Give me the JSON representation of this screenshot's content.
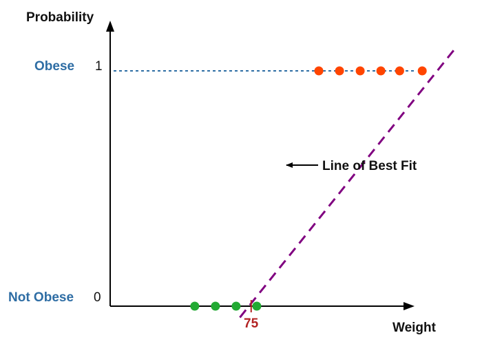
{
  "labels": {
    "y_axis": "Probability",
    "x_axis": "Weight",
    "obese": "Obese",
    "not_obese": "Not Obese",
    "one": "1",
    "zero": "0",
    "tick_75": "75",
    "annotation": "Line of Best Fit"
  },
  "colors": {
    "axis": "#000000",
    "category_label": "#2e6da4",
    "dashed_reference": "#2e6da4",
    "best_fit_line": "#800080",
    "obese_points": "#ff4500",
    "not_obese_points": "#22aa33",
    "tick_75": "#b22222"
  },
  "chart_data": {
    "type": "scatter",
    "xlabel": "Weight",
    "ylabel": "Probability",
    "x_ticks": [
      75
    ],
    "y_ticks": [
      0,
      1
    ],
    "y_tick_categories": [
      "Not Obese",
      "Obese"
    ],
    "series": [
      {
        "label_ref": "not_obese",
        "color_ref": "not_obese_points",
        "x": [
          45,
          56,
          67,
          78
        ],
        "y": [
          0,
          0,
          0,
          0
        ]
      },
      {
        "label_ref": "obese",
        "color_ref": "obese_points",
        "x": [
          111,
          122,
          133,
          144,
          154,
          166
        ],
        "y": [
          1,
          1,
          1,
          1,
          1,
          1
        ]
      }
    ],
    "best_fit_line": {
      "x": [
        69,
        184
      ],
      "y": [
        -0.048,
        1.1
      ],
      "style": "dashed"
    },
    "reference_line": {
      "y": 1,
      "style": "dotted"
    },
    "annotation": {
      "text_ref": "annotation",
      "x": 100,
      "y": 0.57
    }
  }
}
